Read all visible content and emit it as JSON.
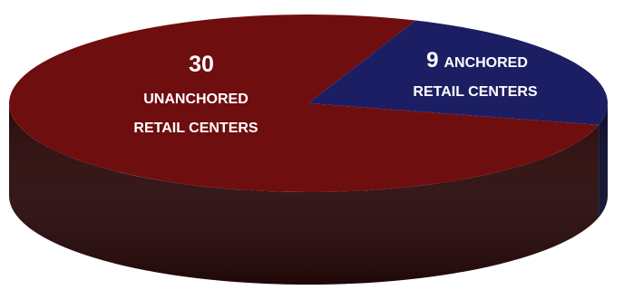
{
  "chart_data": {
    "type": "pie",
    "style": "3d",
    "slices": [
      {
        "value": 30,
        "value_text": "30",
        "label_line1": "UNANCHORED",
        "label_line2": "RETAIL CENTERS",
        "color": "#6f0e0f",
        "side_color": "#2b0a0b"
      },
      {
        "value": 9,
        "value_text": "9",
        "label_line1": "ANCHORED",
        "label_line2": "RETAIL CENTERS",
        "color": "#1c1e64",
        "side_color": "#0b0c2e"
      }
    ],
    "legend": "none",
    "grid": false
  }
}
